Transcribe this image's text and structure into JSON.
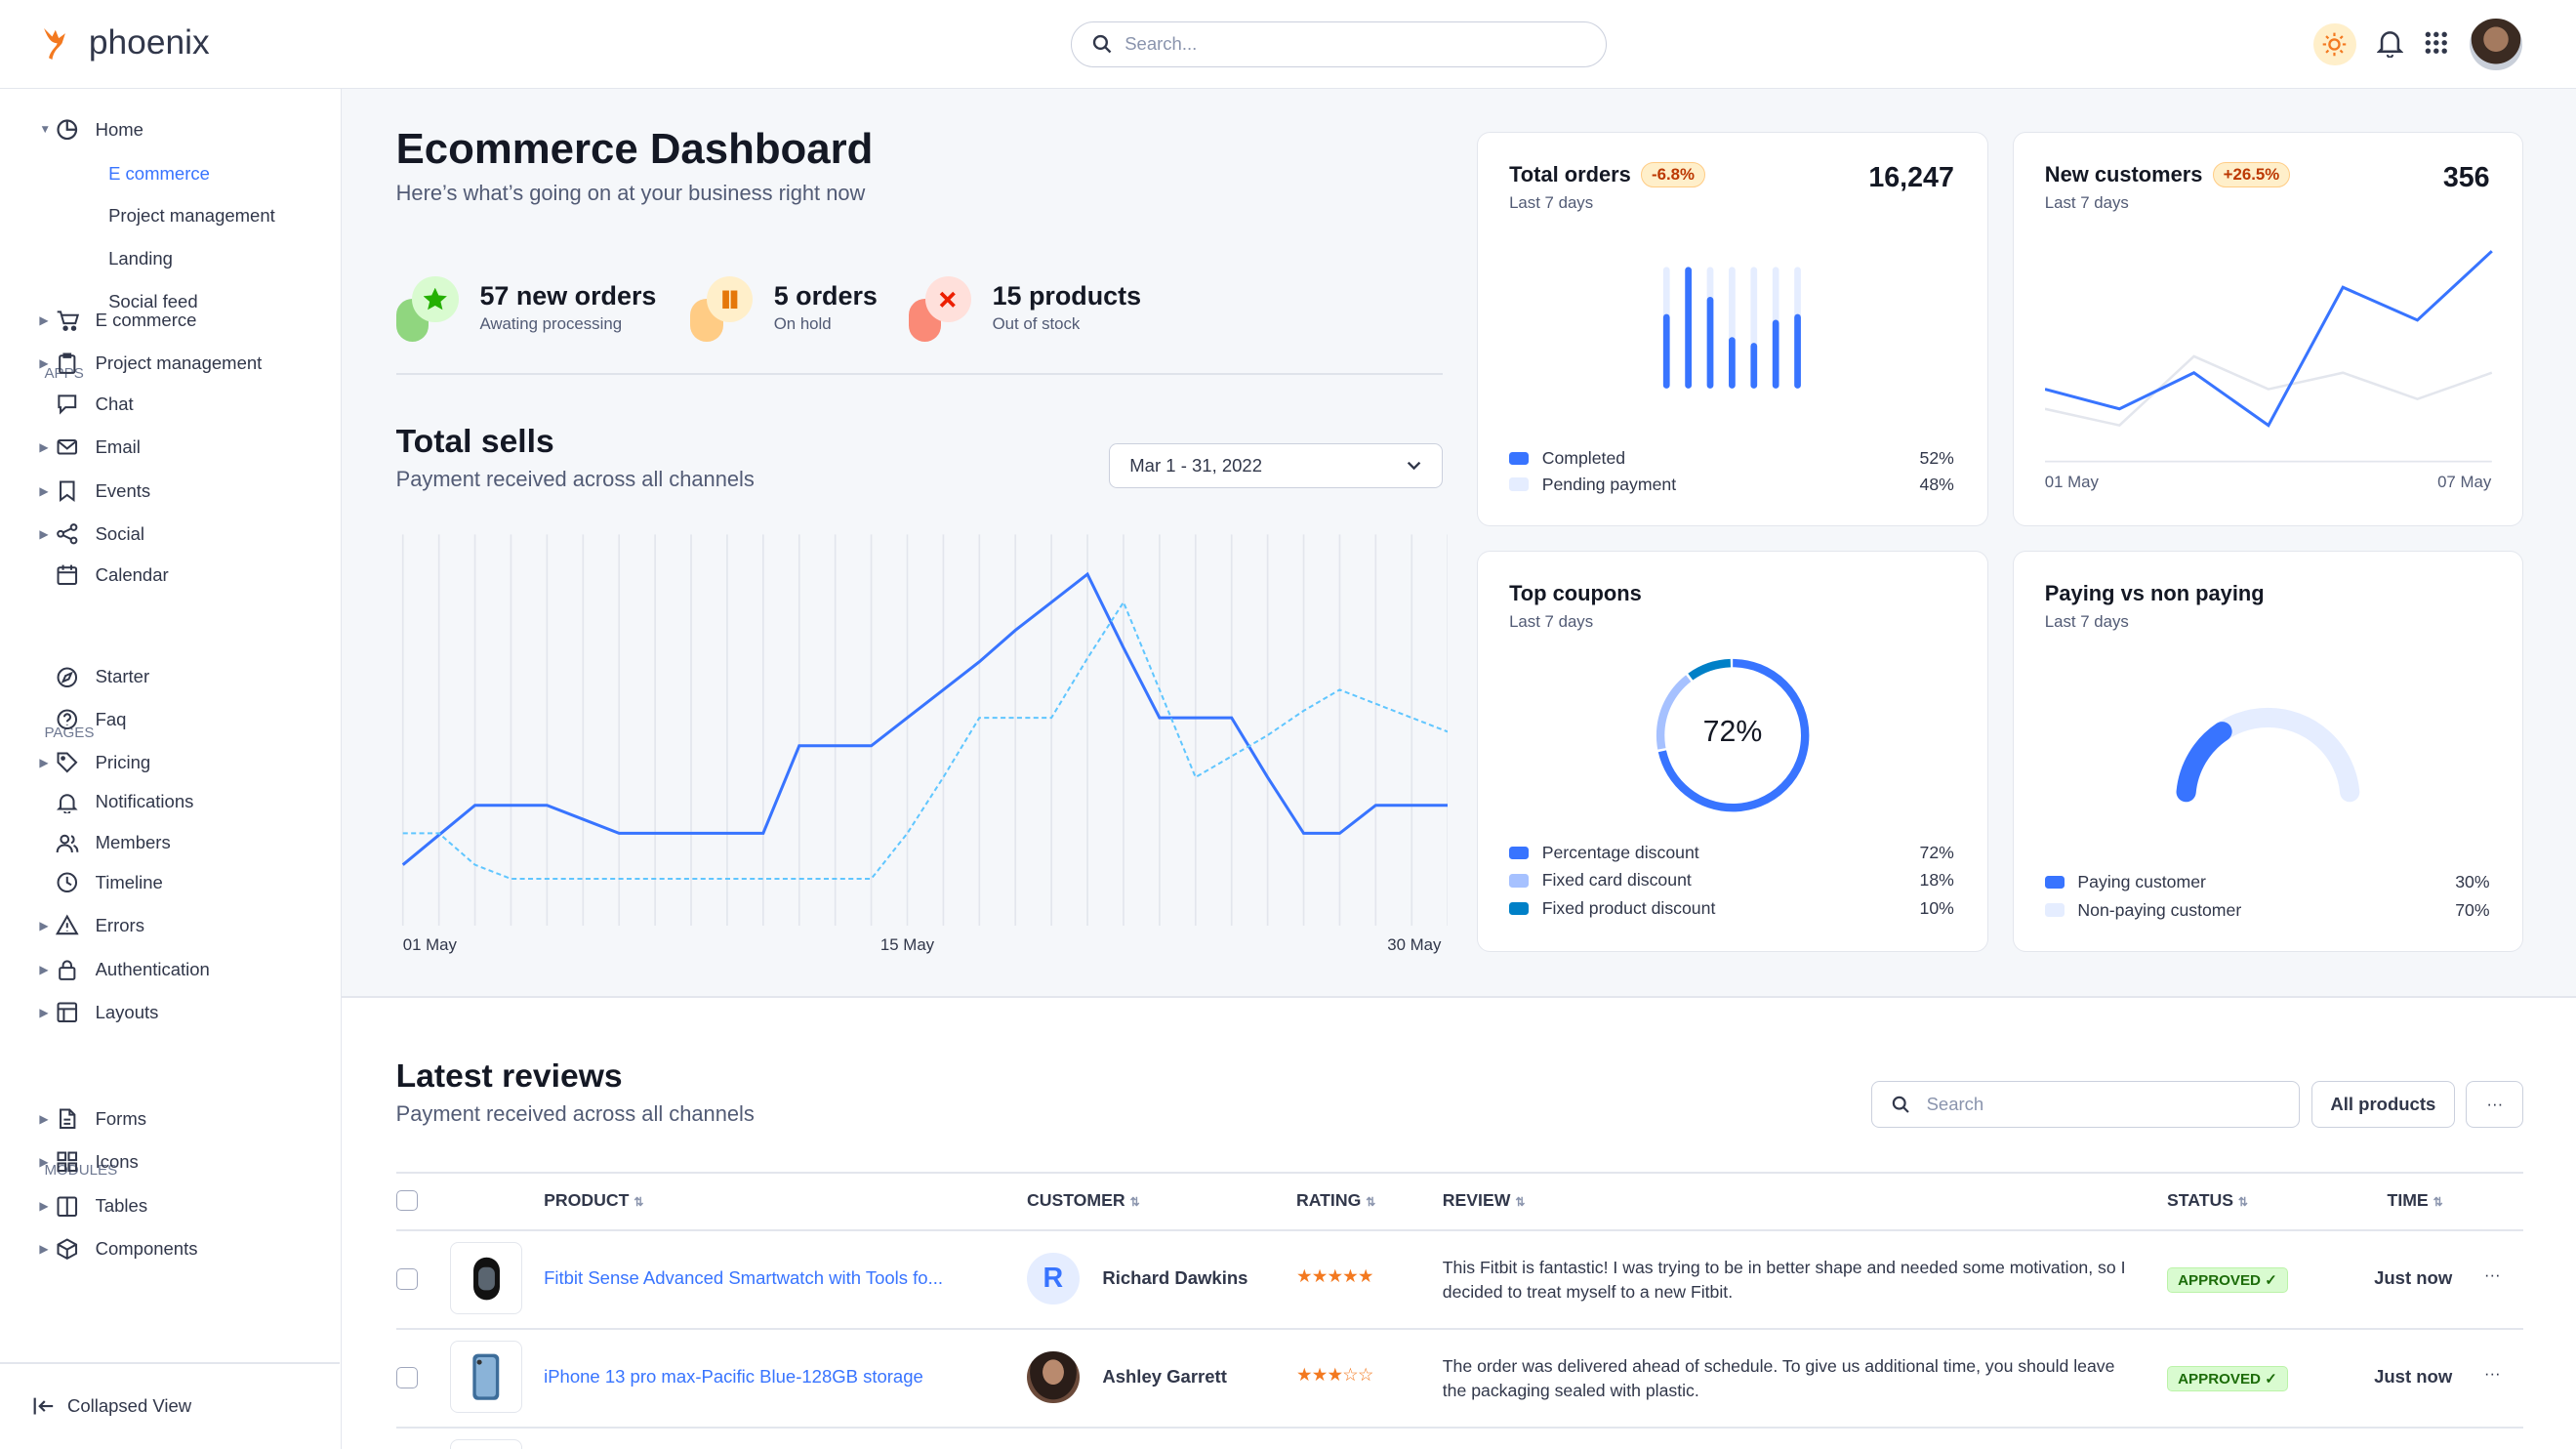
{
  "header": {
    "brand": "phoenix",
    "search_placeholder": "Search...",
    "icons": [
      "sun-icon",
      "bell-icon",
      "apps-grid-icon",
      "user-avatar"
    ]
  },
  "sidebar": {
    "home": {
      "label": "Home",
      "children": [
        {
          "label": "E commerce",
          "active": true
        },
        {
          "label": "Project management"
        },
        {
          "label": "Landing"
        },
        {
          "label": "Social feed"
        }
      ]
    },
    "sections": [
      {
        "title": "APPS",
        "items": [
          {
            "label": "E commerce",
            "icon": "cart-icon",
            "caret": true
          },
          {
            "label": "Project management",
            "icon": "clipboard-icon",
            "caret": true
          },
          {
            "label": "Chat",
            "icon": "chat-icon",
            "caret": false
          },
          {
            "label": "Email",
            "icon": "mail-icon",
            "caret": true
          },
          {
            "label": "Events",
            "icon": "bookmark-icon",
            "caret": true
          },
          {
            "label": "Social",
            "icon": "share-icon",
            "caret": true
          },
          {
            "label": "Calendar",
            "icon": "calendar-icon",
            "caret": false
          }
        ]
      },
      {
        "title": "PAGES",
        "items": [
          {
            "label": "Starter",
            "icon": "compass-icon",
            "caret": false
          },
          {
            "label": "Faq",
            "icon": "help-icon",
            "caret": false
          },
          {
            "label": "Pricing",
            "icon": "tag-icon",
            "caret": true
          },
          {
            "label": "Notifications",
            "icon": "bell-icon",
            "caret": false
          },
          {
            "label": "Members",
            "icon": "users-icon",
            "caret": false
          },
          {
            "label": "Timeline",
            "icon": "clock-icon",
            "caret": false
          },
          {
            "label": "Errors",
            "icon": "alert-icon",
            "caret": true
          },
          {
            "label": "Authentication",
            "icon": "lock-icon",
            "caret": true
          },
          {
            "label": "Layouts",
            "icon": "layout-icon",
            "caret": true
          }
        ]
      },
      {
        "title": "MODULES",
        "items": [
          {
            "label": "Forms",
            "icon": "file-icon",
            "caret": true
          },
          {
            "label": "Icons",
            "icon": "grid-icon",
            "caret": true
          },
          {
            "label": "Tables",
            "icon": "columns-icon",
            "caret": true
          },
          {
            "label": "Components",
            "icon": "package-icon",
            "caret": true
          }
        ]
      }
    ],
    "collapse_label": "Collapsed View"
  },
  "page": {
    "title": "Ecommerce Dashboard",
    "subtitle": "Here’s what’s going on at your business right now"
  },
  "stats": [
    {
      "value": "57 new orders",
      "label": "Awating processing",
      "icon": "star-icon",
      "color": "#25b003",
      "bg": "#d9fbd0",
      "shape": "#90d67f"
    },
    {
      "value": "5 orders",
      "label": "On hold",
      "icon": "pause-icon",
      "color": "#e5780b",
      "bg": "#ffefca",
      "shape": "#ffcc85"
    },
    {
      "value": "15 products",
      "label": "Out of stock",
      "icon": "x-icon",
      "color": "#ec1f00",
      "bg": "#ffe0db",
      "shape": "#fa8a77"
    }
  ],
  "total_sells": {
    "title": "Total sells",
    "subtitle": "Payment received across all channels",
    "date_range": "Mar 1 - 31, 2022"
  },
  "chart_data": [
    {
      "type": "line",
      "title": "Total sells",
      "x_tick_labels": [
        "01 May",
        "15 May",
        "30 May"
      ],
      "x": "days 1–30 May",
      "grid": "vertical",
      "series": [
        {
          "style": "solid",
          "color": "#3874ff",
          "values": [
            8,
            16.5,
            25,
            25,
            25,
            21,
            17,
            17,
            17,
            17,
            17,
            42,
            42,
            42,
            50,
            58,
            66,
            75,
            83,
            91,
            70,
            50,
            50,
            50,
            33,
            17,
            17,
            25,
            25,
            25
          ]
        },
        {
          "style": "dashed",
          "color": "#60c6ff",
          "values": [
            17,
            17,
            8,
            4,
            4,
            4,
            4,
            4,
            4,
            4,
            4,
            4,
            4,
            4,
            17,
            33,
            50,
            50,
            50,
            67,
            83,
            58,
            33,
            39,
            45,
            52,
            58,
            54,
            50,
            46
          ]
        }
      ]
    },
    {
      "type": "bar",
      "title": "Total orders",
      "stacked": true,
      "completed": [
        59,
        100,
        74,
        39,
        34,
        54,
        59
      ],
      "max": 100,
      "colors": {
        "completed": "#3874ff",
        "pending": "#e5edff"
      }
    },
    {
      "type": "line",
      "title": "New customers",
      "x_tick_labels": [
        "01 May",
        "07 May"
      ],
      "series": [
        {
          "color": "#3874ff",
          "values": [
            22,
            16,
            27,
            11,
            53,
            43,
            64
          ]
        },
        {
          "color": "#e3e6ed",
          "values": [
            16,
            11,
            32,
            22,
            27,
            19,
            27
          ]
        }
      ]
    },
    {
      "type": "pie",
      "title": "Top coupons",
      "center_label": "72%",
      "values": [
        72,
        18,
        10
      ],
      "colors": [
        "#3874ff",
        "#a6c1ff",
        "#0080c7"
      ]
    },
    {
      "type": "gauge",
      "title": "Paying vs non paying",
      "values": [
        30,
        70
      ],
      "colors": [
        "#3874ff",
        "#e5edff"
      ]
    }
  ],
  "cards": {
    "orders": {
      "title": "Total orders",
      "badge": "-6.8%",
      "subtitle": "Last 7 days",
      "value": "16,247",
      "legend": [
        {
          "label": "Completed",
          "value": "52%",
          "color": "#3874ff"
        },
        {
          "label": "Pending payment",
          "value": "48%",
          "color": "#e5edff"
        }
      ]
    },
    "customers": {
      "title": "New customers",
      "badge": "+26.5%",
      "subtitle": "Last 7 days",
      "value": "356",
      "x_start": "01 May",
      "x_end": "07 May"
    },
    "coupons": {
      "title": "Top coupons",
      "subtitle": "Last 7 days",
      "center": "72%",
      "legend": [
        {
          "label": "Percentage discount",
          "value": "72%",
          "color": "#3874ff"
        },
        {
          "label": "Fixed card discount",
          "value": "18%",
          "color": "#a6c1ff"
        },
        {
          "label": "Fixed product discount",
          "value": "10%",
          "color": "#0080c7"
        }
      ]
    },
    "paying": {
      "title": "Paying vs non paying",
      "subtitle": "Last 7 days",
      "legend": [
        {
          "label": "Paying customer",
          "value": "30%",
          "color": "#3874ff"
        },
        {
          "label": "Non-paying customer",
          "value": "70%",
          "color": "#e5edff"
        }
      ]
    }
  },
  "reviews": {
    "title": "Latest reviews",
    "subtitle": "Payment received across all channels",
    "search_placeholder": "Search",
    "filter_label": "All products",
    "more_label": "···",
    "columns": [
      "PRODUCT",
      "CUSTOMER",
      "RATING",
      "REVIEW",
      "STATUS",
      "TIME"
    ],
    "rows": [
      {
        "product": "Fitbit Sense Advanced Smartwatch with Tools fo...",
        "customer": "Richard Dawkins",
        "initial": "R",
        "rating": 5,
        "review": "This Fitbit is fantastic! I was trying to be in better shape and needed some motivation, so I decided to treat myself to a new Fitbit.",
        "status": "APPROVED",
        "time": "Just now"
      },
      {
        "product": "iPhone 13 pro max-Pacific Blue-128GB storage",
        "customer": "Ashley Garrett",
        "initial": "",
        "rating": 3,
        "review": "The order was delivered ahead of schedule. To give us additional time, you should leave the packaging sealed with plastic.",
        "status": "APPROVED",
        "time": "Just now"
      }
    ]
  }
}
